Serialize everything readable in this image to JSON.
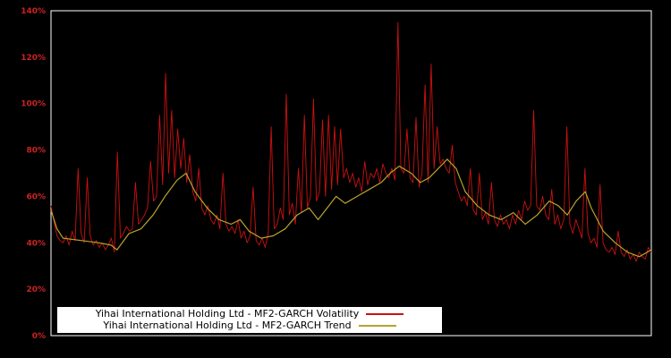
{
  "chart_data": {
    "type": "line",
    "title": "",
    "xlabel": "",
    "ylabel": "",
    "ylim": [
      0,
      140
    ],
    "grid": false,
    "background_color": "#000000",
    "plot_border_color": "#ffffff",
    "axis_label_color": "#cc2222",
    "legend_position": "bottom-center",
    "legend_background": "#ffffff",
    "y_ticks": [
      "0%",
      "20%",
      "40%",
      "60%",
      "80%",
      "100%",
      "120%",
      "140%"
    ],
    "y_tick_values": [
      0,
      20,
      40,
      60,
      80,
      100,
      120,
      140
    ],
    "x_ticks": [],
    "series": [
      {
        "name": "Yihai International Holding Ltd - MF2-GARCH Volatility",
        "color": "#cc1111",
        "line_width": 0.9,
        "values": [
          56,
          49,
          43,
          41,
          40,
          43,
          39,
          45,
          41,
          72,
          44,
          40,
          68,
          43,
          39,
          41,
          38,
          40,
          37,
          39,
          42,
          36,
          79,
          42,
          44,
          47,
          45,
          46,
          66,
          48,
          50,
          52,
          55,
          75,
          58,
          60,
          95,
          65,
          113,
          70,
          97,
          68,
          89,
          72,
          85,
          66,
          78,
          62,
          58,
          72,
          55,
          52,
          56,
          50,
          48,
          52,
          46,
          70,
          48,
          45,
          47,
          44,
          50,
          42,
          45,
          40,
          43,
          64,
          41,
          39,
          42,
          38,
          44,
          90,
          46,
          48,
          55,
          50,
          104,
          52,
          57,
          48,
          72,
          53,
          95,
          55,
          60,
          102,
          58,
          62,
          93,
          60,
          95,
          63,
          90,
          65,
          89,
          68,
          72,
          66,
          70,
          64,
          68,
          62,
          75,
          65,
          70,
          68,
          72,
          66,
          74,
          70,
          68,
          72,
          67,
          135,
          72,
          70,
          89,
          68,
          66,
          94,
          64,
          70,
          108,
          66,
          117,
          72,
          90,
          74,
          76,
          72,
          70,
          82,
          66,
          62,
          58,
          60,
          56,
          72,
          54,
          52,
          70,
          50,
          53,
          48,
          66,
          50,
          47,
          52,
          48,
          50,
          46,
          52,
          48,
          54,
          50,
          58,
          54,
          56,
          97,
          56,
          54,
          60,
          52,
          50,
          63,
          48,
          52,
          46,
          50,
          90,
          48,
          44,
          50,
          46,
          42,
          72,
          44,
          40,
          42,
          38,
          65,
          40,
          37,
          36,
          38,
          35,
          45,
          36,
          34,
          37,
          33,
          35,
          32,
          36,
          34,
          33,
          38,
          36
        ]
      },
      {
        "name": "Yihai International Holding Ltd - MF2-GARCH Trend",
        "color": "#b8a32e",
        "line_width": 1.2,
        "points": [
          [
            0.0,
            54
          ],
          [
            0.01,
            46
          ],
          [
            0.02,
            42
          ],
          [
            0.05,
            41
          ],
          [
            0.08,
            40
          ],
          [
            0.1,
            39
          ],
          [
            0.11,
            37
          ],
          [
            0.13,
            44
          ],
          [
            0.15,
            46
          ],
          [
            0.17,
            52
          ],
          [
            0.19,
            60
          ],
          [
            0.21,
            67
          ],
          [
            0.225,
            70
          ],
          [
            0.24,
            62
          ],
          [
            0.26,
            55
          ],
          [
            0.28,
            50
          ],
          [
            0.3,
            48
          ],
          [
            0.315,
            50
          ],
          [
            0.33,
            45
          ],
          [
            0.35,
            42
          ],
          [
            0.37,
            43
          ],
          [
            0.39,
            46
          ],
          [
            0.41,
            52
          ],
          [
            0.43,
            55
          ],
          [
            0.445,
            50
          ],
          [
            0.46,
            55
          ],
          [
            0.475,
            60
          ],
          [
            0.49,
            57
          ],
          [
            0.51,
            60
          ],
          [
            0.53,
            63
          ],
          [
            0.55,
            66
          ],
          [
            0.565,
            70
          ],
          [
            0.58,
            73
          ],
          [
            0.6,
            70
          ],
          [
            0.615,
            66
          ],
          [
            0.63,
            68
          ],
          [
            0.645,
            72
          ],
          [
            0.66,
            76
          ],
          [
            0.675,
            72
          ],
          [
            0.69,
            62
          ],
          [
            0.71,
            56
          ],
          [
            0.73,
            52
          ],
          [
            0.75,
            50
          ],
          [
            0.77,
            53
          ],
          [
            0.79,
            48
          ],
          [
            0.81,
            52
          ],
          [
            0.83,
            58
          ],
          [
            0.845,
            56
          ],
          [
            0.86,
            52
          ],
          [
            0.875,
            58
          ],
          [
            0.89,
            62
          ],
          [
            0.9,
            55
          ],
          [
            0.92,
            45
          ],
          [
            0.94,
            40
          ],
          [
            0.96,
            36
          ],
          [
            0.98,
            34
          ],
          [
            1.0,
            37
          ]
        ]
      }
    ]
  }
}
